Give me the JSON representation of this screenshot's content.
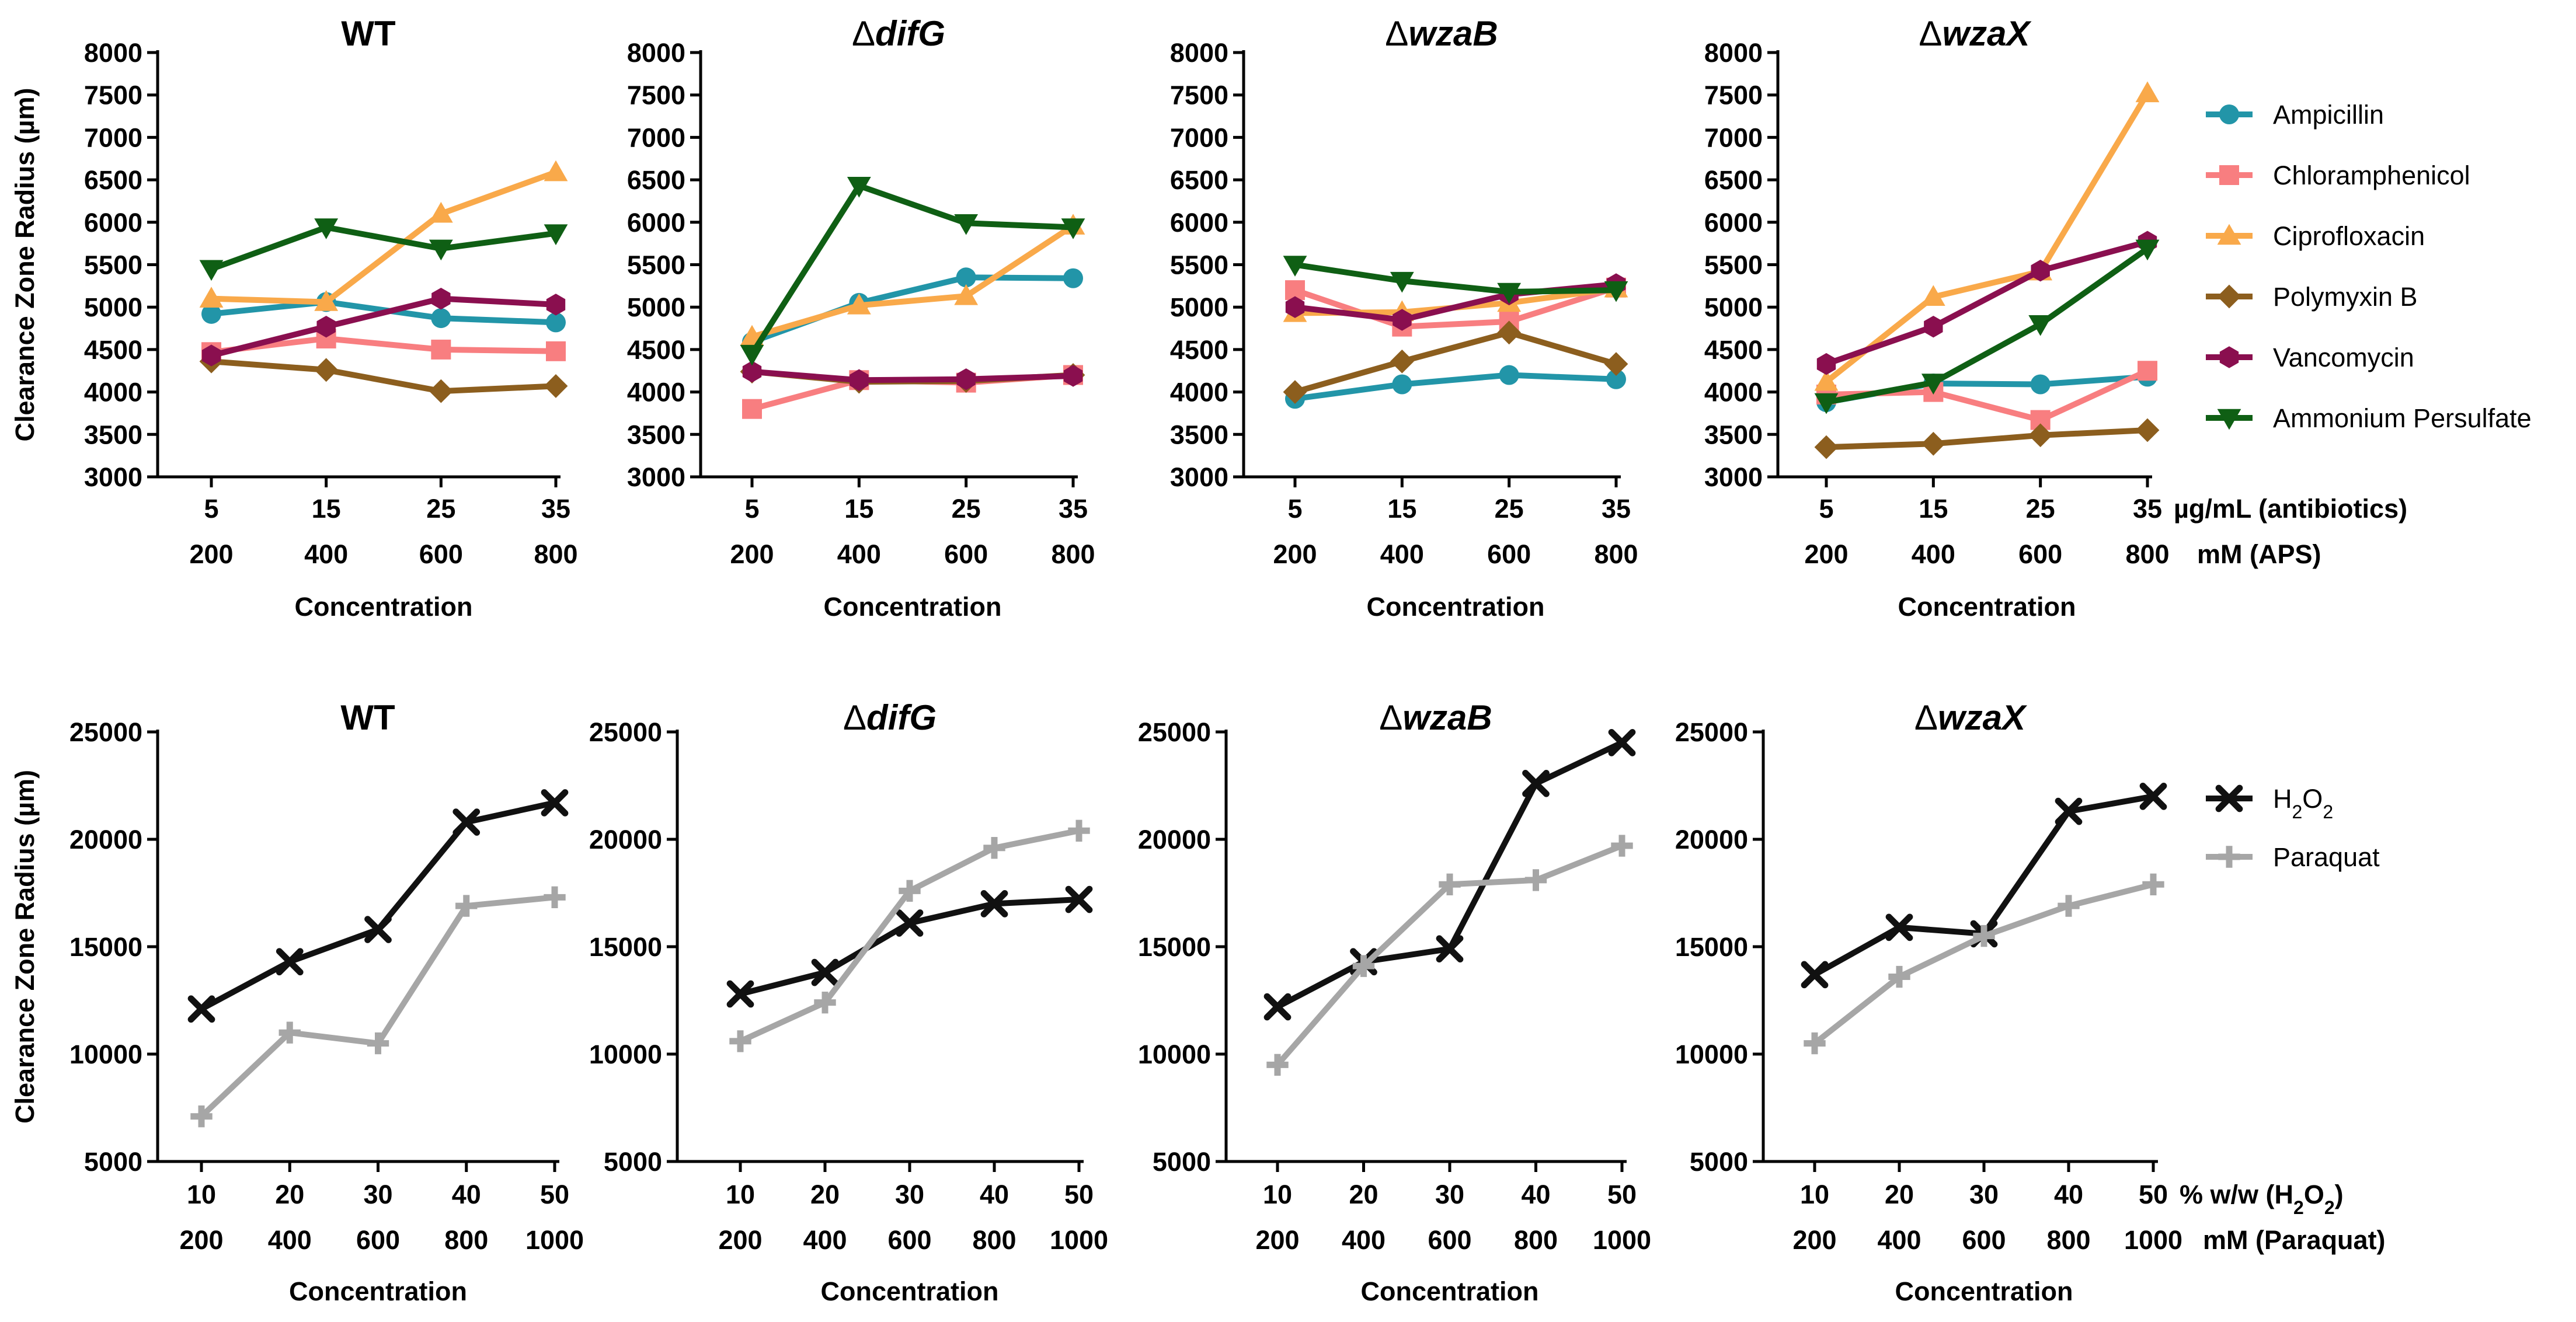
{
  "chart_data": [
    {
      "type": "line",
      "title": "WT",
      "title_style": "upright",
      "ylabel": "Clearance Zone Radius (µm)",
      "xlabel": "Concentration",
      "ylim": [
        3000,
        8000
      ],
      "yticks": [
        3000,
        3500,
        4000,
        4500,
        5000,
        5500,
        6000,
        6500,
        7000,
        7500,
        8000
      ],
      "categories_primary": [
        "5",
        "15",
        "25",
        "35"
      ],
      "categories_secondary": [
        "200",
        "400",
        "600",
        "800"
      ],
      "series": [
        {
          "name": "Ampicillin",
          "values": [
            4920,
            5060,
            4870,
            4820
          ]
        },
        {
          "name": "Chloramphenicol",
          "values": [
            4470,
            4630,
            4500,
            4480
          ]
        },
        {
          "name": "Ciprofloxacin",
          "values": [
            5100,
            5060,
            6100,
            6590
          ]
        },
        {
          "name": "Polymyxin B",
          "values": [
            4360,
            4260,
            4010,
            4070
          ]
        },
        {
          "name": "Vancomycin",
          "values": [
            4430,
            4770,
            5100,
            5030
          ]
        },
        {
          "name": "Ammonium Persulfate",
          "values": [
            5450,
            5940,
            5690,
            5870
          ]
        }
      ]
    },
    {
      "type": "line",
      "title_prefix": "Δ",
      "title": "difG",
      "title_style": "italic",
      "ylabel": "",
      "xlabel": "Concentration",
      "ylim": [
        3000,
        8000
      ],
      "yticks": [
        3000,
        3500,
        4000,
        4500,
        5000,
        5500,
        6000,
        6500,
        7000,
        7500,
        8000
      ],
      "categories_primary": [
        "5",
        "15",
        "25",
        "35"
      ],
      "categories_secondary": [
        "200",
        "400",
        "600",
        "800"
      ],
      "series": [
        {
          "name": "Ampicillin",
          "values": [
            4590,
            5050,
            5350,
            5340
          ]
        },
        {
          "name": "Chloramphenicol",
          "values": [
            3800,
            4140,
            4110,
            4200
          ]
        },
        {
          "name": "Ciprofloxacin",
          "values": [
            4650,
            5020,
            5130,
            5960
          ]
        },
        {
          "name": "Polymyxin B",
          "values": [
            4240,
            4120,
            4130,
            4200
          ]
        },
        {
          "name": "Vancomycin",
          "values": [
            4240,
            4140,
            4150,
            4190
          ]
        },
        {
          "name": "Ammonium Persulfate",
          "values": [
            4450,
            6430,
            5990,
            5940
          ]
        }
      ]
    },
    {
      "type": "line",
      "title_prefix": "Δ",
      "title": "wzaB",
      "title_style": "italic",
      "ylabel": "",
      "xlabel": "Concentration",
      "ylim": [
        3000,
        8000
      ],
      "yticks": [
        3000,
        3500,
        4000,
        4500,
        5000,
        5500,
        6000,
        6500,
        7000,
        7500,
        8000
      ],
      "categories_primary": [
        "5",
        "15",
        "25",
        "35"
      ],
      "categories_secondary": [
        "200",
        "400",
        "600",
        "800"
      ],
      "series": [
        {
          "name": "Ampicillin",
          "values": [
            3920,
            4090,
            4200,
            4150
          ]
        },
        {
          "name": "Chloramphenicol",
          "values": [
            5200,
            4770,
            4830,
            5230
          ]
        },
        {
          "name": "Ciprofloxacin",
          "values": [
            4930,
            4940,
            5050,
            5220
          ]
        },
        {
          "name": "Polymyxin B",
          "values": [
            4000,
            4360,
            4700,
            4330
          ]
        },
        {
          "name": "Vancomycin",
          "values": [
            5000,
            4850,
            5150,
            5270
          ]
        },
        {
          "name": "Ammonium Persulfate",
          "values": [
            5500,
            5310,
            5180,
            5200
          ]
        }
      ]
    },
    {
      "type": "line",
      "title_prefix": "Δ",
      "title": "wzaX",
      "title_style": "italic",
      "ylabel": "",
      "xlabel": "Concentration",
      "x_unit_primary": "µg/mL (antibiotics)",
      "x_unit_secondary": "mM (APS)",
      "ylim": [
        3000,
        8000
      ],
      "yticks": [
        3000,
        3500,
        4000,
        4500,
        5000,
        5500,
        6000,
        6500,
        7000,
        7500,
        8000
      ],
      "categories_primary": [
        "5",
        "15",
        "25",
        "35"
      ],
      "categories_secondary": [
        "200",
        "400",
        "600",
        "800"
      ],
      "series": [
        {
          "name": "Ampicillin",
          "values": [
            3880,
            4100,
            4090,
            4180
          ]
        },
        {
          "name": "Chloramphenicol",
          "values": [
            3970,
            4000,
            3670,
            4250
          ]
        },
        {
          "name": "Ciprofloxacin",
          "values": [
            4120,
            5120,
            5420,
            7520
          ]
        },
        {
          "name": "Polymyxin B",
          "values": [
            3350,
            3390,
            3490,
            3550
          ]
        },
        {
          "name": "Vancomycin",
          "values": [
            4330,
            4770,
            5430,
            5770
          ]
        },
        {
          "name": "Ammonium Persulfate",
          "values": [
            3880,
            4110,
            4800,
            5690
          ]
        }
      ]
    },
    {
      "type": "line",
      "title": "WT",
      "title_style": "upright",
      "ylabel": "Clearance Zone Radius (µm)",
      "xlabel": "Concentration",
      "ylim": [
        5000,
        25000
      ],
      "yticks": [
        5000,
        10000,
        15000,
        20000,
        25000
      ],
      "categories_primary": [
        "10",
        "20",
        "30",
        "40",
        "50"
      ],
      "categories_secondary": [
        "200",
        "400",
        "600",
        "800",
        "1000"
      ],
      "series": [
        {
          "name": "H2O2",
          "values": [
            12100,
            14300,
            15800,
            20800,
            21700
          ]
        },
        {
          "name": "Paraquat",
          "values": [
            7100,
            11000,
            10500,
            16900,
            17300
          ]
        }
      ]
    },
    {
      "type": "line",
      "title_prefix": "Δ",
      "title": "difG",
      "title_style": "italic",
      "ylabel": "",
      "xlabel": "Concentration",
      "ylim": [
        5000,
        25000
      ],
      "yticks": [
        5000,
        10000,
        15000,
        20000,
        25000
      ],
      "categories_primary": [
        "10",
        "20",
        "30",
        "40",
        "50"
      ],
      "categories_secondary": [
        "200",
        "400",
        "600",
        "800",
        "1000"
      ],
      "series": [
        {
          "name": "H2O2",
          "values": [
            12800,
            13800,
            16100,
            17000,
            17200
          ]
        },
        {
          "name": "Paraquat",
          "values": [
            10600,
            12400,
            17600,
            19600,
            20400
          ]
        }
      ]
    },
    {
      "type": "line",
      "title_prefix": "Δ",
      "title": "wzaB",
      "title_style": "italic",
      "ylabel": "",
      "xlabel": "Concentration",
      "ylim": [
        5000,
        25000
      ],
      "yticks": [
        5000,
        10000,
        15000,
        20000,
        25000
      ],
      "categories_primary": [
        "10",
        "20",
        "30",
        "40",
        "50"
      ],
      "categories_secondary": [
        "200",
        "400",
        "600",
        "800",
        "1000"
      ],
      "series": [
        {
          "name": "H2O2",
          "values": [
            12200,
            14300,
            14900,
            22600,
            24500
          ]
        },
        {
          "name": "Paraquat",
          "values": [
            9500,
            14100,
            17900,
            18100,
            19700
          ]
        }
      ]
    },
    {
      "type": "line",
      "title_prefix": "Δ",
      "title": "wzaX",
      "title_style": "italic",
      "ylabel": "",
      "xlabel": "Concentration",
      "x_unit_primary_parts": [
        "% w/w (H",
        "2",
        "O",
        "2",
        ")"
      ],
      "x_unit_secondary": "mM (Paraquat)",
      "ylim": [
        5000,
        25000
      ],
      "yticks": [
        5000,
        10000,
        15000,
        20000,
        25000
      ],
      "categories_primary": [
        "10",
        "20",
        "30",
        "40",
        "50"
      ],
      "categories_secondary": [
        "200",
        "400",
        "600",
        "800",
        "1000"
      ],
      "series": [
        {
          "name": "H2O2",
          "values": [
            13700,
            15900,
            15600,
            21300,
            22000
          ]
        },
        {
          "name": "Paraquat",
          "values": [
            10500,
            13600,
            15500,
            16900,
            17900
          ]
        }
      ]
    }
  ],
  "legend_top": {
    "placement": "right",
    "items": [
      {
        "label": "Ampicillin",
        "color": "#2295A8",
        "marker": "circle"
      },
      {
        "label": "Chloramphenicol",
        "color": "#F87E80",
        "marker": "square"
      },
      {
        "label": "Ciprofloxacin",
        "color": "#F9A94A",
        "marker": "triangle-up"
      },
      {
        "label": "Polymyxin B",
        "color": "#8C5E1E",
        "marker": "diamond"
      },
      {
        "label": "Vancomycin",
        "color": "#8A0F4F",
        "marker": "hexagon"
      },
      {
        "label": "Ammonium Persulfate",
        "color": "#0F5F14",
        "marker": "triangle-down"
      }
    ]
  },
  "legend_bottom": {
    "placement": "right",
    "items": [
      {
        "label_parts": [
          "H",
          "2",
          "O",
          "2"
        ],
        "color": "#111111",
        "marker": "x"
      },
      {
        "label_parts": [
          "Paraquat"
        ],
        "color": "#A6A6A6",
        "marker": "plus"
      }
    ]
  }
}
